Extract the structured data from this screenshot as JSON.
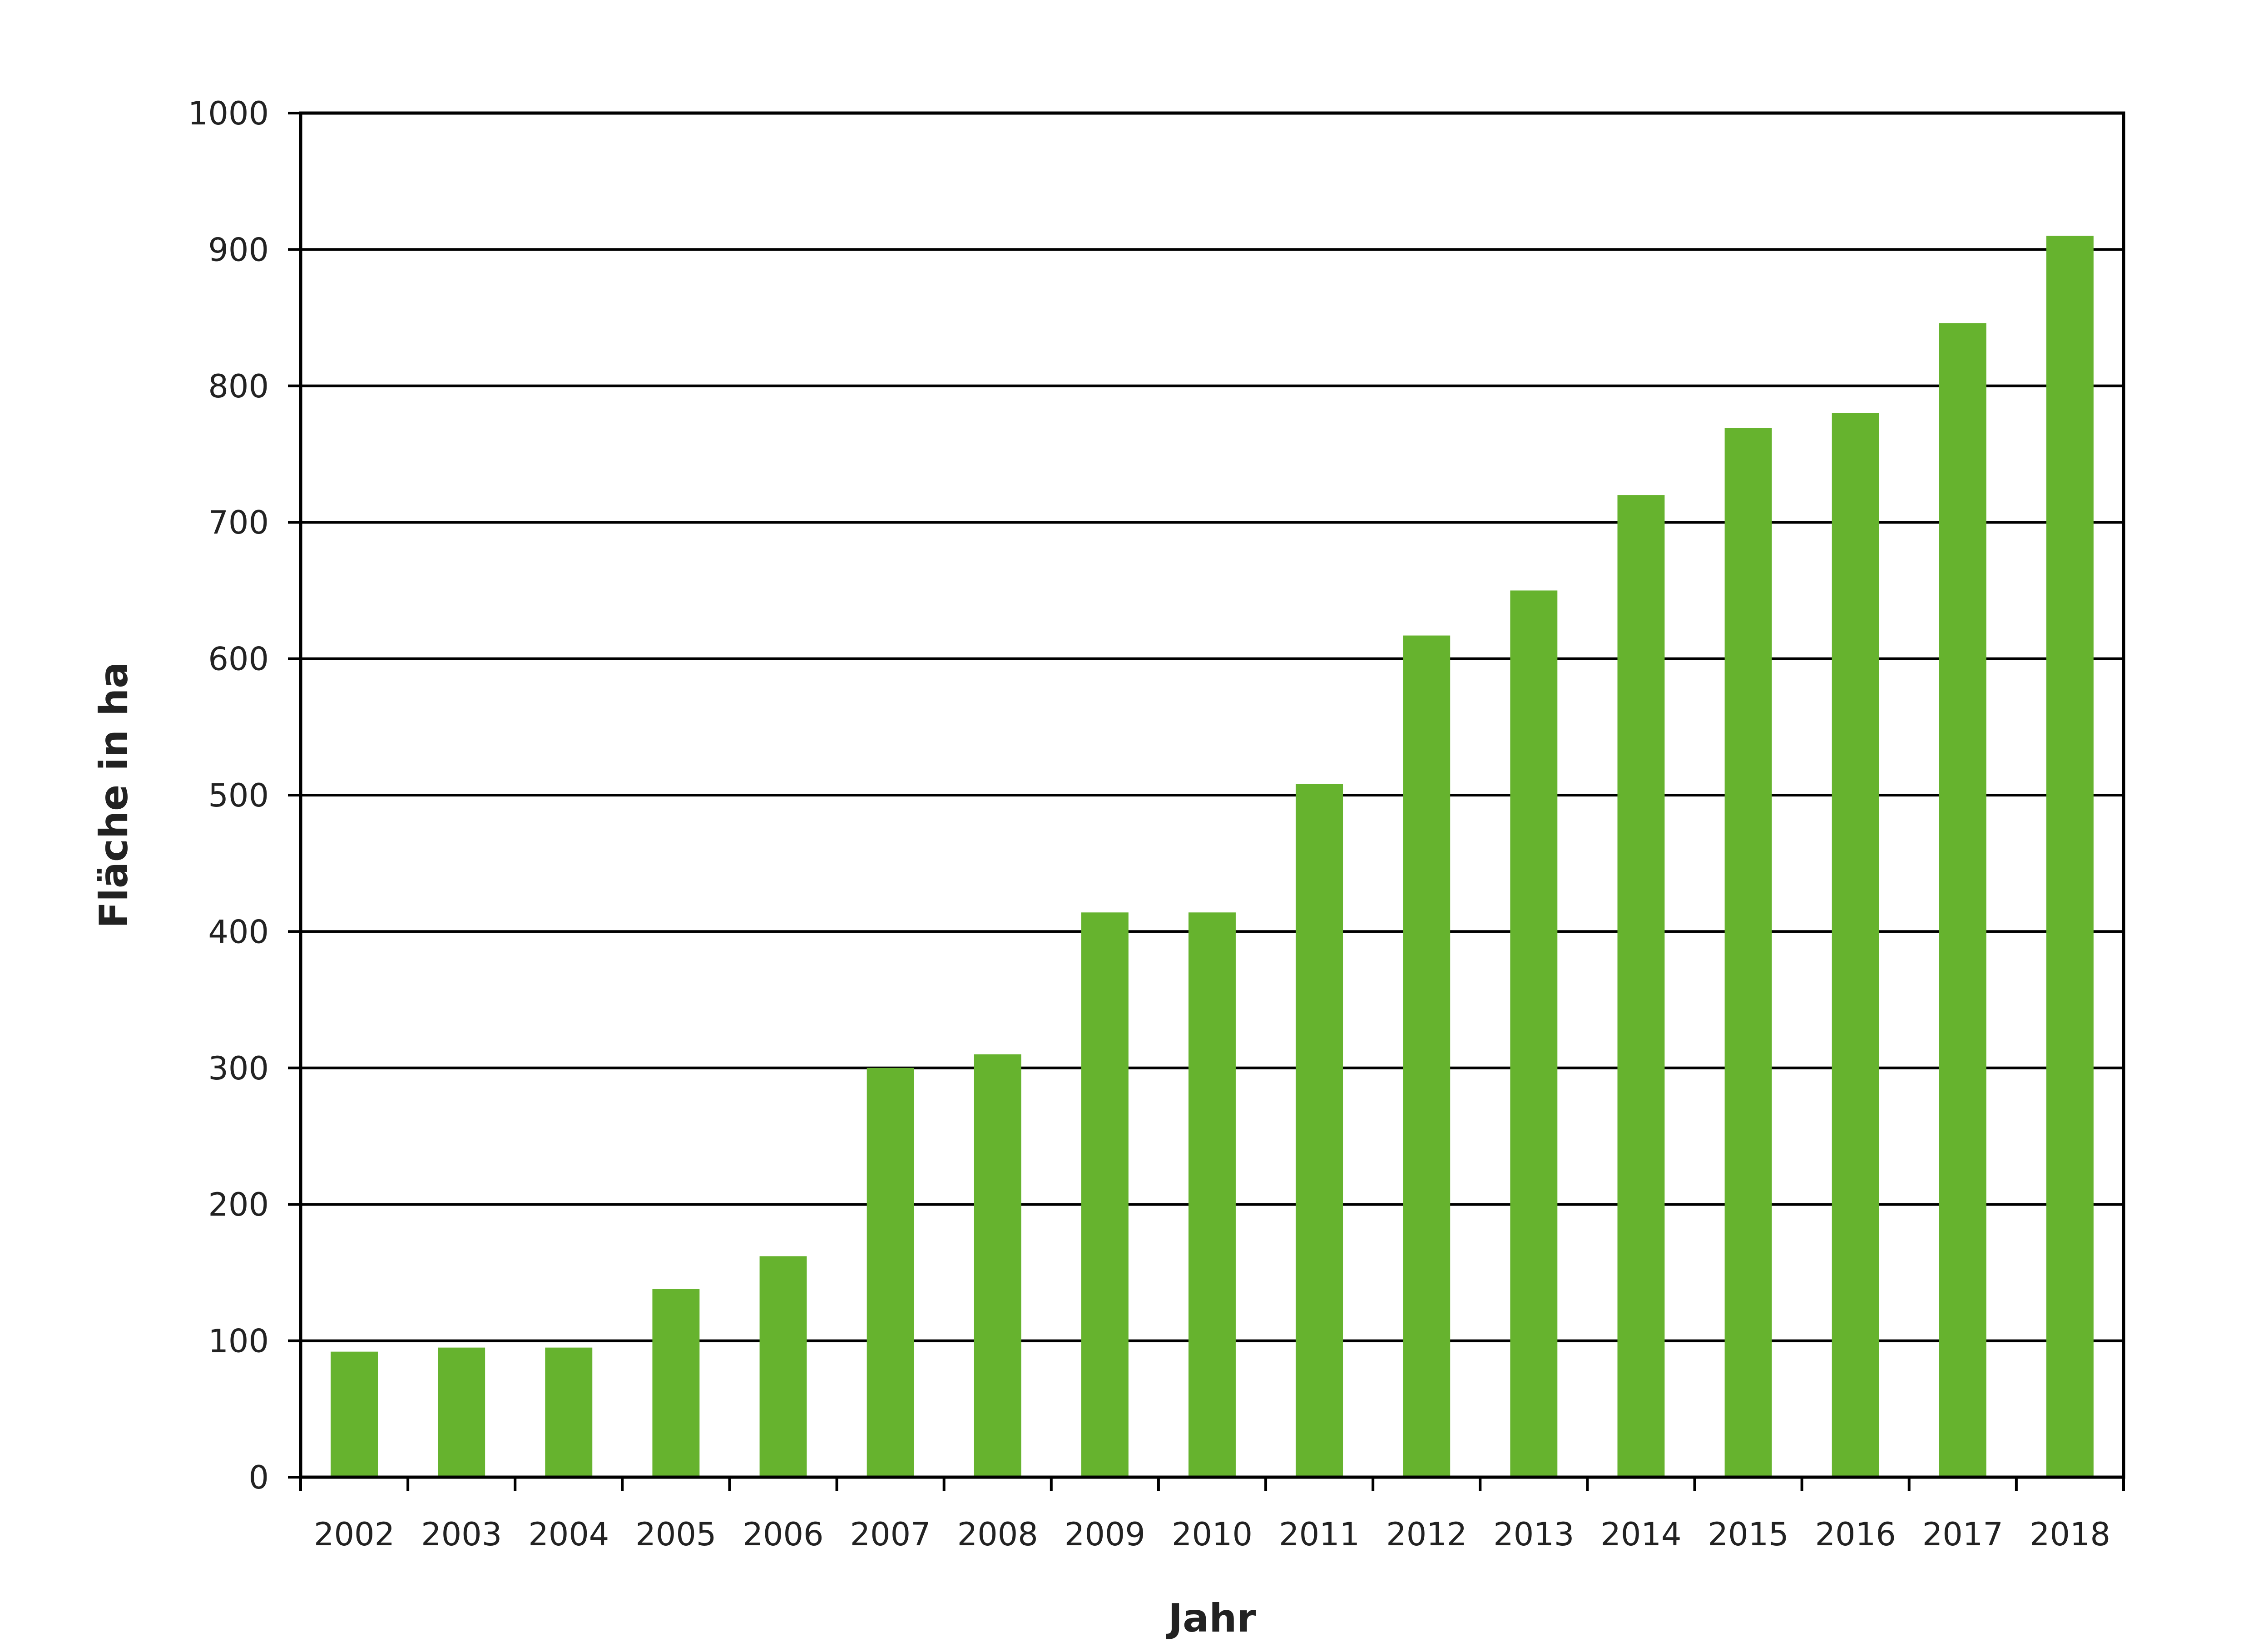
{
  "chart_data": {
    "type": "bar",
    "title": "",
    "xlabel": "Jahr",
    "ylabel": "Fläche in ha",
    "categories": [
      "2002",
      "2003",
      "2004",
      "2005",
      "2006",
      "2007",
      "2008",
      "2009",
      "2010",
      "2011",
      "2012",
      "2013",
      "2014",
      "2015",
      "2016",
      "2017",
      "2018"
    ],
    "values": [
      92,
      95,
      95,
      138,
      162,
      300,
      310,
      414,
      414,
      508,
      617,
      650,
      720,
      769,
      780,
      846,
      910
    ],
    "ylim": [
      0,
      1000
    ],
    "yticks": [
      0,
      100,
      200,
      300,
      400,
      500,
      600,
      700,
      800,
      900,
      1000
    ],
    "grid": "horizontal",
    "legend": "none",
    "bar_color": "#66b32e"
  }
}
